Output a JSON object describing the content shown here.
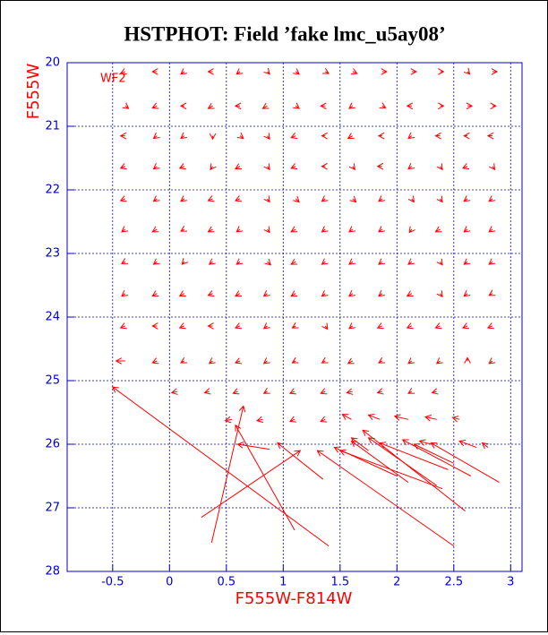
{
  "chart_data": {
    "type": "quiver",
    "title": "HSTPHOT: Field ’fake lmc_u5ay08’",
    "x_label": "F555W-F814W",
    "y_label": "F555W",
    "annotation": "WF2",
    "color": "#ff0000",
    "axis_color": "#0000cc",
    "grid": true,
    "xlim": [
      -0.9,
      3.1
    ],
    "ylim": [
      28,
      20
    ],
    "xticks": [
      -0.5,
      0,
      0.5,
      1,
      1.5,
      2,
      2.5,
      3
    ],
    "yticks": [
      20,
      21,
      22,
      23,
      24,
      25,
      26,
      27,
      28
    ],
    "arrows": [
      [
        -0.39,
        20.14,
        -0.04,
        0.03
      ],
      [
        -0.11,
        20.14,
        -0.04,
        0
      ],
      [
        0.13,
        20.14,
        -0.03,
        0.04
      ],
      [
        0.38,
        20.14,
        -0.04,
        0
      ],
      [
        0.62,
        20.14,
        -0.03,
        0.04
      ],
      [
        0.86,
        20.14,
        0.02,
        0.04
      ],
      [
        1.11,
        20.14,
        0.03,
        0.04
      ],
      [
        1.37,
        20.14,
        0.03,
        0.03
      ],
      [
        1.61,
        20.14,
        0.04,
        0.03
      ],
      [
        1.87,
        20.14,
        0.04,
        0
      ],
      [
        2.13,
        20.14,
        0.04,
        0
      ],
      [
        2.38,
        20.14,
        0.03,
        0
      ],
      [
        2.62,
        20.14,
        0.02,
        0.04
      ],
      [
        2.84,
        20.14,
        0.04,
        0
      ],
      [
        -0.39,
        20.68,
        0.03,
        0.04
      ],
      [
        -0.11,
        20.68,
        -0.04,
        0.03
      ],
      [
        0.13,
        20.68,
        -0.03,
        0
      ],
      [
        0.38,
        20.68,
        -0.04,
        0.04
      ],
      [
        0.62,
        20.68,
        -0.04,
        0
      ],
      [
        0.86,
        20.68,
        -0.04,
        0.04
      ],
      [
        1.11,
        20.68,
        0.03,
        0.04
      ],
      [
        1.37,
        20.68,
        -0.04,
        0
      ],
      [
        1.61,
        20.68,
        -0.03,
        0.04
      ],
      [
        1.87,
        20.68,
        0.03,
        0.03
      ],
      [
        2.13,
        20.68,
        -0.04,
        0
      ],
      [
        2.38,
        20.68,
        0.03,
        0
      ],
      [
        2.62,
        20.68,
        0.04,
        0
      ],
      [
        2.84,
        20.68,
        0.03,
        0
      ],
      [
        -0.39,
        21.15,
        -0.04,
        0
      ],
      [
        -0.11,
        21.15,
        -0.03,
        0.04
      ],
      [
        0.13,
        21.15,
        -0.03,
        0.04
      ],
      [
        0.38,
        21.15,
        0,
        0.05
      ],
      [
        0.62,
        21.15,
        0.03,
        0.04
      ],
      [
        0.86,
        21.15,
        0.02,
        0.05
      ],
      [
        1.11,
        21.15,
        -0.04,
        0.03
      ],
      [
        1.37,
        21.15,
        -0.03,
        0
      ],
      [
        1.61,
        21.15,
        -0.04,
        0.04
      ],
      [
        1.87,
        21.15,
        -0.03,
        0
      ],
      [
        2.13,
        21.15,
        -0.03,
        0.04
      ],
      [
        2.38,
        21.15,
        -0.04,
        0
      ],
      [
        2.62,
        21.15,
        -0.03,
        0
      ],
      [
        2.84,
        21.15,
        -0.04,
        0
      ],
      [
        -0.39,
        21.63,
        -0.04,
        0.03
      ],
      [
        -0.11,
        21.63,
        -0.03,
        0.04
      ],
      [
        0.13,
        21.63,
        -0.04,
        0.03
      ],
      [
        0.38,
        21.63,
        -0.02,
        0.05
      ],
      [
        0.62,
        21.63,
        -0.04,
        0.04
      ],
      [
        0.86,
        21.63,
        0.02,
        0.05
      ],
      [
        1.11,
        21.63,
        -0.04,
        0.03
      ],
      [
        1.37,
        21.63,
        -0.03,
        0
      ],
      [
        1.61,
        21.63,
        0.02,
        0.05
      ],
      [
        1.87,
        21.63,
        -0.04,
        0
      ],
      [
        2.13,
        21.63,
        -0.03,
        0.04
      ],
      [
        2.38,
        21.63,
        0.02,
        0.05
      ],
      [
        2.62,
        21.63,
        -0.04,
        0.03
      ],
      [
        2.84,
        21.63,
        0.02,
        0.05
      ],
      [
        -0.39,
        22.14,
        -0.04,
        0.03
      ],
      [
        -0.11,
        22.14,
        -0.03,
        0.04
      ],
      [
        0.13,
        22.14,
        -0.03,
        0.04
      ],
      [
        0.38,
        22.14,
        -0.04,
        0.03
      ],
      [
        0.62,
        22.14,
        -0.04,
        0.03
      ],
      [
        0.86,
        22.14,
        0.02,
        0.05
      ],
      [
        1.11,
        22.14,
        0.03,
        0.05
      ],
      [
        1.37,
        22.14,
        -0.03,
        0.04
      ],
      [
        1.61,
        22.14,
        0.03,
        0.05
      ],
      [
        1.87,
        22.14,
        -0.03,
        0.04
      ],
      [
        2.13,
        22.14,
        0.02,
        0.05
      ],
      [
        2.38,
        22.14,
        0.02,
        0.05
      ],
      [
        2.62,
        22.14,
        -0.03,
        0.04
      ],
      [
        2.84,
        22.14,
        -0.03,
        0.04
      ],
      [
        -0.39,
        22.62,
        -0.03,
        0.04
      ],
      [
        -0.11,
        22.62,
        -0.04,
        0.04
      ],
      [
        0.13,
        22.62,
        -0.03,
        0.03
      ],
      [
        0.38,
        22.62,
        -0.04,
        0.04
      ],
      [
        0.62,
        22.62,
        -0.03,
        0.04
      ],
      [
        0.86,
        22.62,
        0.02,
        0.05
      ],
      [
        1.11,
        22.62,
        -0.04,
        0.04
      ],
      [
        1.37,
        22.62,
        -0.03,
        0.04
      ],
      [
        1.61,
        22.62,
        -0.03,
        0.04
      ],
      [
        1.87,
        22.62,
        -0.03,
        0.04
      ],
      [
        2.13,
        22.62,
        -0.02,
        0.05
      ],
      [
        2.38,
        22.62,
        -0.04,
        0.04
      ],
      [
        2.62,
        22.62,
        -0.03,
        0.04
      ],
      [
        2.84,
        22.62,
        -0.03,
        0.04
      ],
      [
        -0.39,
        23.13,
        -0.03,
        0.03
      ],
      [
        -0.11,
        23.13,
        -0.03,
        0.04
      ],
      [
        0.13,
        23.13,
        -0.02,
        0.04
      ],
      [
        0.38,
        23.13,
        -0.03,
        0.04
      ],
      [
        0.62,
        23.13,
        -0.03,
        0.04
      ],
      [
        0.86,
        23.13,
        0.03,
        0.05
      ],
      [
        1.11,
        23.13,
        -0.04,
        0.04
      ],
      [
        1.37,
        23.13,
        -0.03,
        0.04
      ],
      [
        1.61,
        23.13,
        -0.03,
        0.04
      ],
      [
        1.87,
        23.13,
        -0.03,
        0.04
      ],
      [
        2.13,
        23.13,
        -0.03,
        0.04
      ],
      [
        2.38,
        23.13,
        0.02,
        0.05
      ],
      [
        2.62,
        23.13,
        -0.03,
        0.04
      ],
      [
        2.84,
        23.13,
        -0.03,
        0.04
      ],
      [
        -0.39,
        23.63,
        -0.03,
        0.04
      ],
      [
        -0.11,
        23.63,
        -0.04,
        0.04
      ],
      [
        0.13,
        23.63,
        -0.04,
        0.04
      ],
      [
        0.38,
        23.63,
        -0.04,
        0.03
      ],
      [
        0.62,
        23.63,
        -0.04,
        0.04
      ],
      [
        0.86,
        23.63,
        -0.03,
        0.04
      ],
      [
        1.11,
        23.63,
        -0.04,
        0.04
      ],
      [
        1.37,
        23.63,
        -0.03,
        0.04
      ],
      [
        1.61,
        23.63,
        -0.03,
        0.04
      ],
      [
        1.87,
        23.63,
        -0.03,
        0.04
      ],
      [
        2.13,
        23.63,
        -0.04,
        0.04
      ],
      [
        2.38,
        23.63,
        0.02,
        0.05
      ],
      [
        2.62,
        23.63,
        -0.03,
        0.04
      ],
      [
        2.84,
        23.63,
        -0.03,
        0.03
      ],
      [
        -0.39,
        24.14,
        -0.04,
        0.03
      ],
      [
        -0.11,
        24.14,
        -0.04,
        0
      ],
      [
        0.13,
        24.14,
        -0.04,
        0.03
      ],
      [
        0.38,
        24.14,
        -0.04,
        0
      ],
      [
        0.62,
        24.14,
        -0.04,
        0.03
      ],
      [
        0.86,
        24.14,
        -0.03,
        0.04
      ],
      [
        1.11,
        24.14,
        -0.03,
        0.03
      ],
      [
        1.37,
        24.14,
        0.02,
        0.05
      ],
      [
        1.61,
        24.14,
        -0.03,
        0.04
      ],
      [
        1.87,
        24.14,
        -0.04,
        0.03
      ],
      [
        2.13,
        24.14,
        -0.04,
        0.03
      ],
      [
        2.38,
        24.14,
        -0.04,
        0.03
      ],
      [
        2.62,
        24.14,
        -0.04,
        0.03
      ],
      [
        2.84,
        24.14,
        -0.04,
        0.03
      ],
      [
        -0.39,
        24.69,
        -0.08,
        0
      ],
      [
        -0.11,
        24.69,
        -0.04,
        0.03
      ],
      [
        0.13,
        24.69,
        -0.03,
        0.03
      ],
      [
        0.38,
        24.69,
        -0.03,
        0.04
      ],
      [
        0.62,
        24.69,
        -0.04,
        0.03
      ],
      [
        0.86,
        24.69,
        -0.03,
        0.04
      ],
      [
        1.11,
        24.69,
        -0.03,
        0.03
      ],
      [
        1.37,
        24.69,
        -0.03,
        0.03
      ],
      [
        1.61,
        24.69,
        -0.04,
        0.04
      ],
      [
        1.87,
        24.69,
        -0.03,
        0.03
      ],
      [
        2.13,
        24.69,
        -0.03,
        0.04
      ],
      [
        2.38,
        24.69,
        -0.03,
        0.04
      ],
      [
        2.62,
        24.69,
        0,
        -0.05
      ],
      [
        2.84,
        24.69,
        -0.03,
        0.04
      ],
      [
        0.07,
        25.17,
        -0.05,
        0.02
      ],
      [
        0.35,
        25.17,
        -0.04,
        0.02
      ],
      [
        0.6,
        25.17,
        -0.04,
        0.03
      ],
      [
        0.86,
        25.17,
        -0.03,
        0.03
      ],
      [
        1.1,
        25.17,
        -0.04,
        0.03
      ],
      [
        1.37,
        25.17,
        -0.04,
        0.03
      ],
      [
        1.61,
        25.17,
        -0.05,
        0.02
      ],
      [
        1.87,
        25.17,
        -0.04,
        0.02
      ],
      [
        2.13,
        25.17,
        -0.03,
        0.03
      ],
      [
        2.35,
        25.17,
        -0.04,
        0.02
      ],
      [
        0.55,
        25.61,
        -0.06,
        0.02
      ],
      [
        0.82,
        25.61,
        -0.05,
        0.02
      ],
      [
        1.1,
        25.61,
        -0.04,
        0.03
      ],
      [
        1.37,
        25.61,
        -0.04,
        0.03
      ],
      [
        1.6,
        25.61,
        -0.08,
        -0.08
      ],
      [
        1.85,
        25.61,
        -0.1,
        -0.07
      ],
      [
        2.1,
        25.61,
        -0.12,
        -0.05
      ],
      [
        2.35,
        25.61,
        -0.1,
        -0.04
      ],
      [
        2.55,
        25.61,
        -0.06,
        -0.03
      ],
      [
        1.4,
        27.6,
        -1.9,
        -2.5
      ],
      [
        0.37,
        27.55,
        0.28,
        -2.15
      ],
      [
        0.28,
        27.15,
        0.87,
        -1.05
      ],
      [
        1.1,
        27.35,
        -0.52,
        -1.65
      ],
      [
        0.88,
        26.08,
        -0.28,
        -0.08
      ],
      [
        1.35,
        26.55,
        -0.4,
        -0.57
      ],
      [
        2.5,
        27.6,
        -1.2,
        -1.5
      ],
      [
        2.0,
        26.5,
        -0.55,
        -0.45
      ],
      [
        2.4,
        26.7,
        -0.9,
        -0.6
      ],
      [
        2.6,
        27.05,
        -0.9,
        -1.27
      ],
      [
        2.1,
        26.6,
        -0.5,
        -0.65
      ],
      [
        2.35,
        26.65,
        -0.6,
        -0.75
      ],
      [
        2.45,
        26.4,
        -0.6,
        -0.42
      ],
      [
        2.65,
        26.5,
        -0.6,
        -0.57
      ],
      [
        2.9,
        26.6,
        -0.6,
        -0.62
      ],
      [
        2.5,
        26.3,
        -0.35,
        -0.3
      ],
      [
        2.3,
        26.0,
        -0.1,
        -0.05
      ],
      [
        2.7,
        26.05,
        -0.15,
        -0.1
      ],
      [
        2.8,
        26.05,
        -0.05,
        -0.07
      ],
      [
        1.75,
        26.1,
        -0.15,
        -0.2
      ]
    ]
  }
}
